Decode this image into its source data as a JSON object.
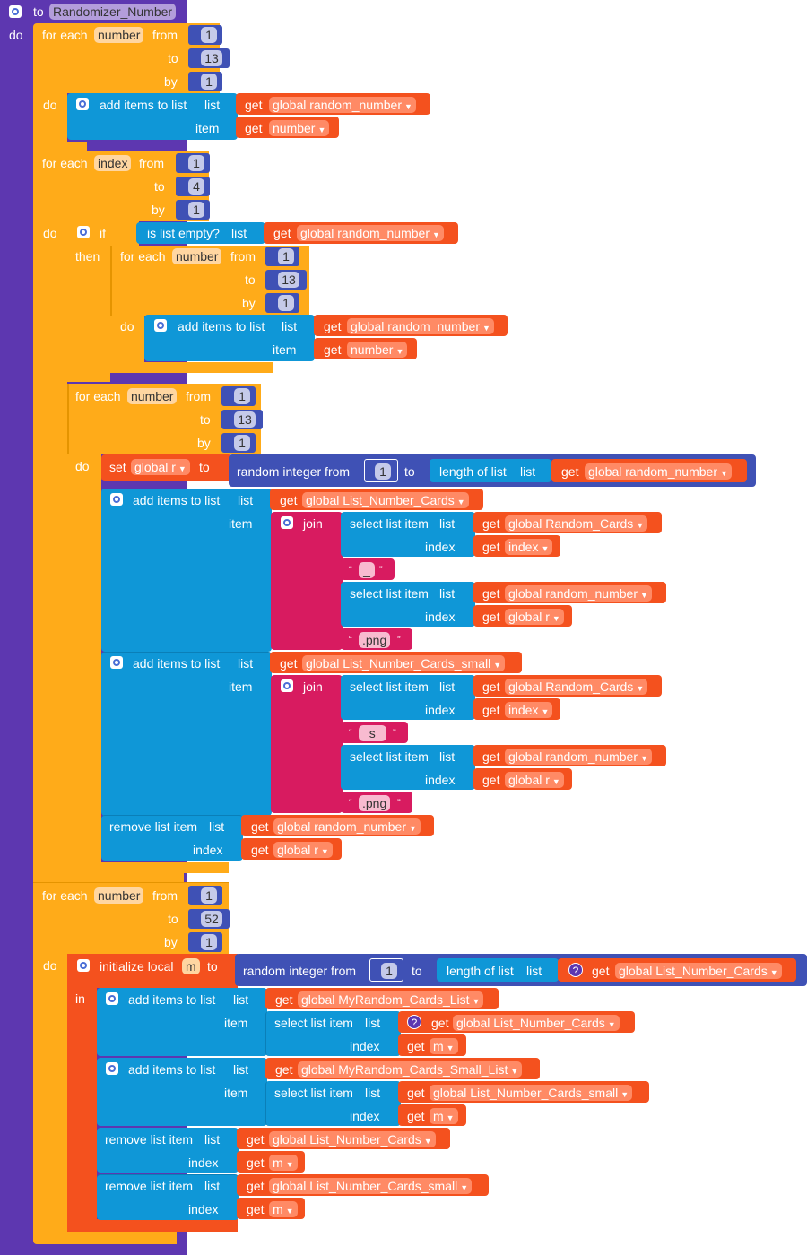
{
  "proc": {
    "to": "to",
    "name": "Randomizer_Number",
    "do": "do"
  },
  "kw": {
    "for_each": "for each",
    "from": "from",
    "to": "to",
    "by": "by",
    "do": "do",
    "add_items": "add items to list",
    "list": "list",
    "item": "item",
    "get": "get",
    "if": "if",
    "then": "then",
    "is_empty": "is list empty?",
    "set": "set",
    "random_int": "random integer from",
    "length_of_list": "length of list",
    "join": "join",
    "select_item": "select list item",
    "index": "index",
    "remove_item": "remove list item",
    "init_local": "initialize local",
    "in": "in",
    "open_quote": "“",
    "close_quote": "”",
    "question": "?"
  },
  "vars": {
    "number": "number",
    "index": "index",
    "m": "m",
    "g_random_number": "global random_number",
    "g_random_cards": "global Random_Cards",
    "g_r": "global r",
    "g_list_number_cards": "global List_Number_Cards",
    "g_list_number_cards_small": "global List_Number_Cards_small",
    "g_myrandom_cards_list": "global MyRandom_Cards_List",
    "g_myrandom_cards_small_list": "global MyRandom_Cards_Small_List"
  },
  "nums": {
    "one": "1",
    "four": "4",
    "thirteen": "13",
    "fifty_two": "52"
  },
  "strings": {
    "underscore": "_",
    "png": ".png",
    "s": "_s_"
  },
  "colors": {
    "procedure": "#5d37b0",
    "control": "#ffab19",
    "lists": "#0f97d7",
    "variables": "#f4511e",
    "text": "#d81b60",
    "math": "#3f51b5"
  }
}
